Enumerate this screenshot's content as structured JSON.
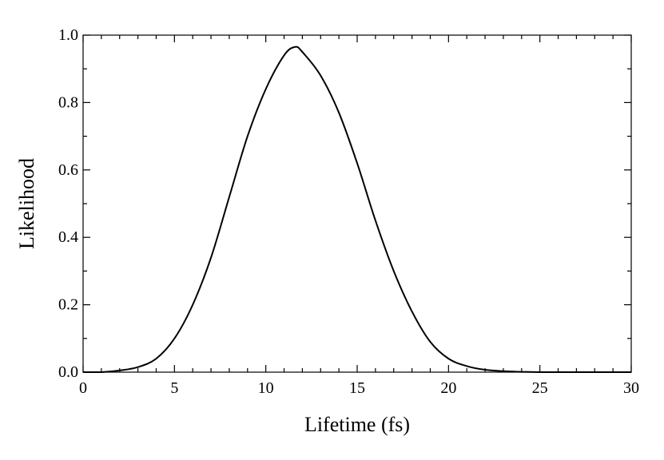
{
  "chart_data": {
    "type": "line",
    "title": "",
    "xlabel": "Lifetime (fs)",
    "ylabel": "Likelihood",
    "xlim": [
      0,
      30
    ],
    "ylim": [
      0,
      1.0
    ],
    "x_ticks": [
      "0",
      "5",
      "10",
      "15",
      "20",
      "25",
      "30"
    ],
    "y_ticks": [
      "0.0",
      "0.2",
      "0.4",
      "0.6",
      "0.8",
      "1.0"
    ],
    "grid": false,
    "legend": "none",
    "series": [
      {
        "color": "#000000",
        "x": [
          0,
          1,
          2,
          3,
          4,
          5,
          6,
          7,
          8,
          9,
          10,
          11,
          11.6,
          12,
          13,
          14,
          15,
          16,
          17,
          18,
          19,
          20,
          21,
          22,
          23,
          24,
          25,
          26,
          27,
          28,
          29,
          30
        ],
        "y": [
          0.0,
          0.0,
          0.005,
          0.015,
          0.04,
          0.1,
          0.2,
          0.34,
          0.52,
          0.7,
          0.84,
          0.94,
          0.965,
          0.95,
          0.88,
          0.77,
          0.62,
          0.45,
          0.3,
          0.18,
          0.09,
          0.04,
          0.018,
          0.007,
          0.003,
          0.001,
          0.0,
          0.0,
          0.0,
          0.0,
          0.0,
          0.0
        ]
      }
    ]
  }
}
